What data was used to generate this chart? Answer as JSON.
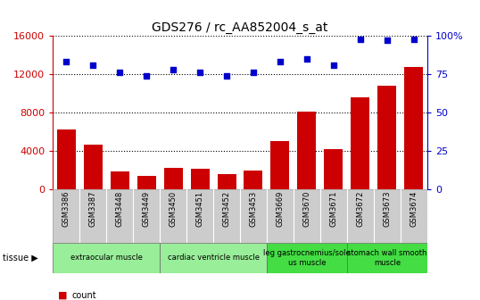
{
  "title": "GDS276 / rc_AA852004_s_at",
  "categories": [
    "GSM3386",
    "GSM3387",
    "GSM3448",
    "GSM3449",
    "GSM3450",
    "GSM3451",
    "GSM3452",
    "GSM3453",
    "GSM3669",
    "GSM3670",
    "GSM3671",
    "GSM3672",
    "GSM3673",
    "GSM3674"
  ],
  "counts": [
    6200,
    4600,
    1800,
    1400,
    2200,
    2100,
    1600,
    1900,
    5000,
    8100,
    4200,
    9600,
    10800,
    12800
  ],
  "percentiles": [
    83,
    81,
    76,
    74,
    78,
    76,
    74,
    76,
    83,
    85,
    81,
    98,
    97,
    98
  ],
  "left_ylim": [
    0,
    16000
  ],
  "left_yticks": [
    0,
    4000,
    8000,
    12000,
    16000
  ],
  "right_yticks": [
    0,
    25,
    50,
    75,
    100
  ],
  "bar_color": "#cc0000",
  "dot_color": "#0000cc",
  "tissue_groups": [
    {
      "label": "extraocular muscle",
      "start": 0,
      "end": 3,
      "color": "#99ee99"
    },
    {
      "label": "cardiac ventricle muscle",
      "start": 4,
      "end": 7,
      "color": "#99ee99"
    },
    {
      "label": "leg gastrocnemius/sole\nus muscle",
      "start": 8,
      "end": 10,
      "color": "#44dd44"
    },
    {
      "label": "stomach wall smooth\nmuscle",
      "start": 11,
      "end": 13,
      "color": "#44dd44"
    }
  ],
  "xticklabel_bg": "#cccccc",
  "plot_bg": "white"
}
